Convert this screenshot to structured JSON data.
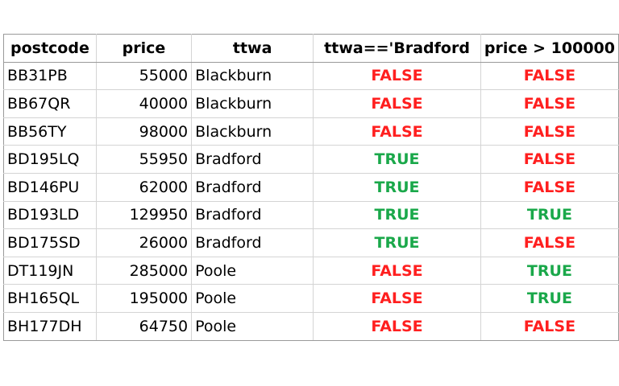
{
  "colors": {
    "true": "#1aa84a",
    "false": "#ff1f1f",
    "border": "#d4d4d4",
    "header_border": "#9a9a9a"
  },
  "headers": [
    "postcode",
    "price",
    "ttwa",
    "ttwa=='Bradford",
    "price > 100000"
  ],
  "rows": [
    {
      "postcode": "BB31PB",
      "price": "55000",
      "ttwa": "Blackburn",
      "is_bradford": "FALSE",
      "over_100k": "FALSE"
    },
    {
      "postcode": "BB67QR",
      "price": "40000",
      "ttwa": "Blackburn",
      "is_bradford": "FALSE",
      "over_100k": "FALSE"
    },
    {
      "postcode": "BB56TY",
      "price": "98000",
      "ttwa": "Blackburn",
      "is_bradford": "FALSE",
      "over_100k": "FALSE"
    },
    {
      "postcode": "BD195LQ",
      "price": "55950",
      "ttwa": "Bradford",
      "is_bradford": "TRUE",
      "over_100k": "FALSE"
    },
    {
      "postcode": "BD146PU",
      "price": "62000",
      "ttwa": "Bradford",
      "is_bradford": "TRUE",
      "over_100k": "FALSE"
    },
    {
      "postcode": "BD193LD",
      "price": "129950",
      "ttwa": "Bradford",
      "is_bradford": "TRUE",
      "over_100k": "TRUE"
    },
    {
      "postcode": "BD175SD",
      "price": "26000",
      "ttwa": "Bradford",
      "is_bradford": "TRUE",
      "over_100k": "FALSE"
    },
    {
      "postcode": "DT119JN",
      "price": "285000",
      "ttwa": "Poole",
      "is_bradford": "FALSE",
      "over_100k": "TRUE"
    },
    {
      "postcode": "BH165QL",
      "price": "195000",
      "ttwa": "Poole",
      "is_bradford": "FALSE",
      "over_100k": "TRUE"
    },
    {
      "postcode": "BH177DH",
      "price": "64750",
      "ttwa": "Poole",
      "is_bradford": "FALSE",
      "over_100k": "FALSE"
    }
  ]
}
